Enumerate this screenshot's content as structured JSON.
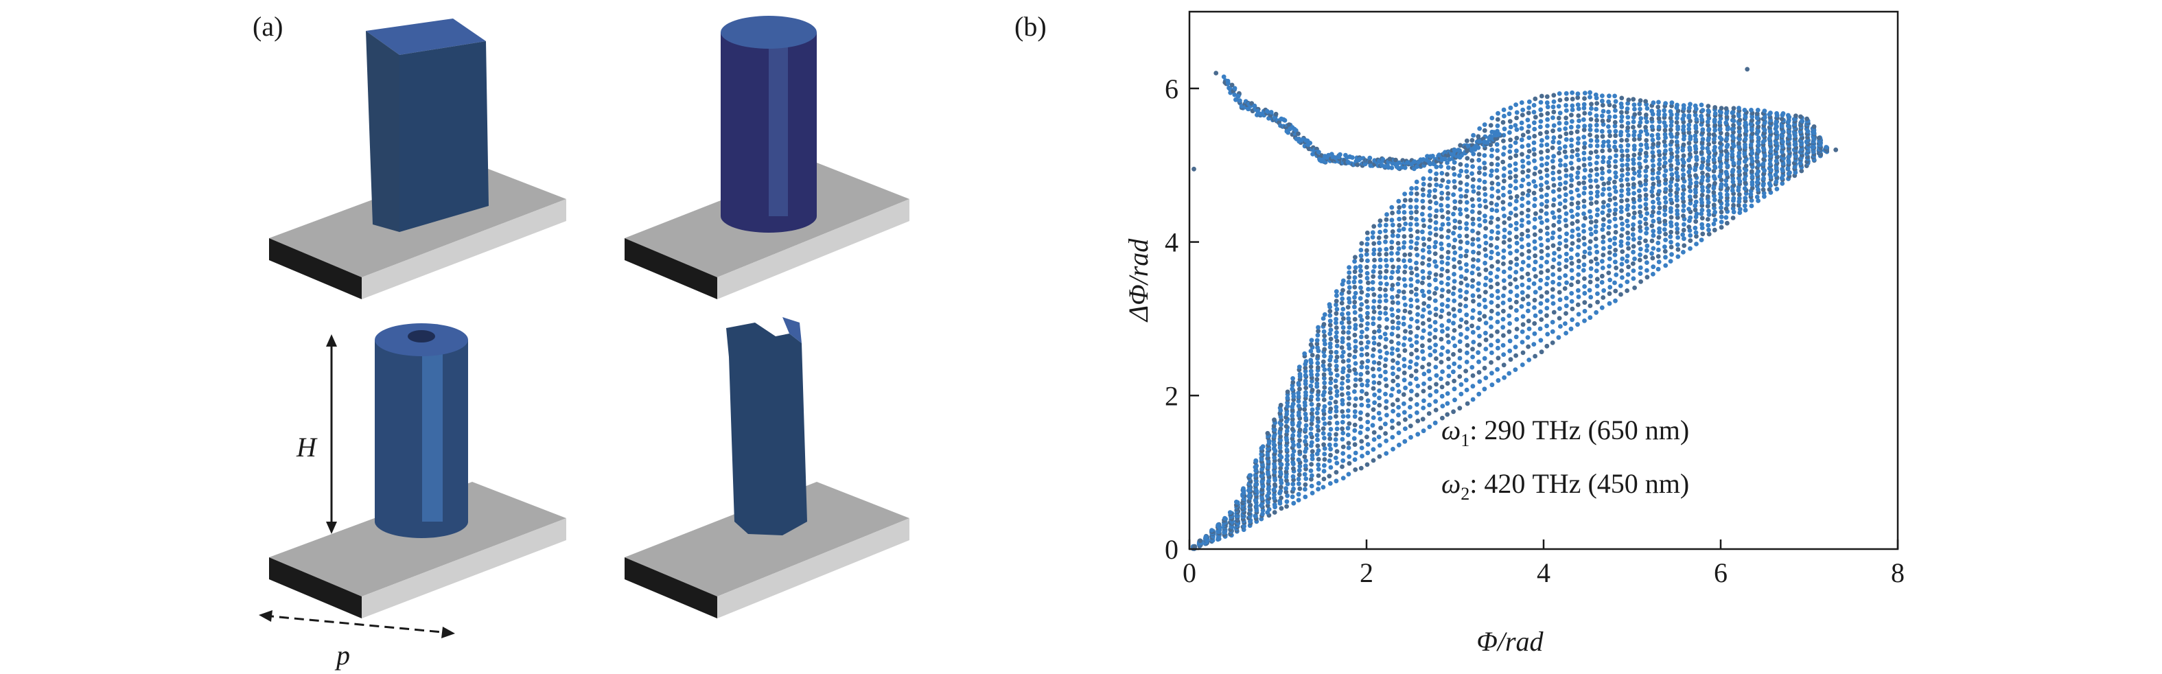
{
  "figure": {
    "panel_a": {
      "label": "(a)",
      "height_symbol": "H",
      "period_symbol": "p",
      "pillar_color": "#2e4a7a",
      "substrate_color": "#a9a9a9",
      "substrate_base_color": "#1a1a1a",
      "pillars": [
        "square-pillar",
        "cylinder-pillar",
        "hollow-cylinder-pillar",
        "notched-pillar"
      ]
    },
    "panel_b": {
      "label": "(b)",
      "annotations": [
        {
          "symbol": "ω",
          "sub": "1",
          "text": ": 290 THz (650 nm)"
        },
        {
          "symbol": "ω",
          "sub": "2",
          "text": ": 420 THz (450 nm)"
        }
      ]
    }
  },
  "chart_data": {
    "type": "scatter",
    "xlabel": "Φ/rad",
    "ylabel": "ΔΦ/rad",
    "xlim": [
      0,
      8
    ],
    "ylim": [
      0,
      7
    ],
    "xticks": [
      0,
      2,
      4,
      6,
      8
    ],
    "yticks": [
      0,
      2,
      4,
      6
    ],
    "grid": false,
    "point_colors": [
      "#3a7fc4",
      "#4a6b8f"
    ],
    "series": [
      {
        "values": {
          "band_lower": [
            [
              0.05,
              0.02
            ],
            [
              0.5,
              0.2
            ],
            [
              1.0,
              0.5
            ],
            [
              2.0,
              1.1
            ],
            [
              3.0,
              1.8
            ],
            [
              4.0,
              2.6
            ],
            [
              5.0,
              3.4
            ],
            [
              6.0,
              4.2
            ],
            [
              7.0,
              5.0
            ],
            [
              7.2,
              5.2
            ]
          ],
          "band_upper": [
            [
              0.05,
              0.02
            ],
            [
              0.5,
              0.5
            ],
            [
              1.0,
              1.8
            ],
            [
              1.5,
              3.0
            ],
            [
              2.0,
              4.1
            ],
            [
              2.5,
              4.7
            ],
            [
              3.0,
              5.2
            ],
            [
              3.5,
              5.7
            ],
            [
              4.0,
              5.9
            ],
            [
              4.5,
              5.95
            ],
            [
              5.0,
              5.85
            ],
            [
              5.5,
              5.8
            ],
            [
              6.0,
              5.75
            ],
            [
              6.5,
              5.7
            ],
            [
              7.0,
              5.6
            ],
            [
              7.2,
              5.2
            ]
          ],
          "upper_branch": [
            [
              0.4,
              6.1
            ],
            [
              0.6,
              5.8
            ],
            [
              0.8,
              5.7
            ],
            [
              1.0,
              5.6
            ],
            [
              1.3,
              5.3
            ],
            [
              1.5,
              5.1
            ],
            [
              2.0,
              5.05
            ],
            [
              2.5,
              5.0
            ],
            [
              3.0,
              5.15
            ],
            [
              3.5,
              5.4
            ]
          ],
          "outliers": [
            [
              0.05,
              4.95
            ],
            [
              0.3,
              6.2
            ],
            [
              6.3,
              6.25
            ],
            [
              7.3,
              5.2
            ]
          ]
        }
      }
    ]
  }
}
